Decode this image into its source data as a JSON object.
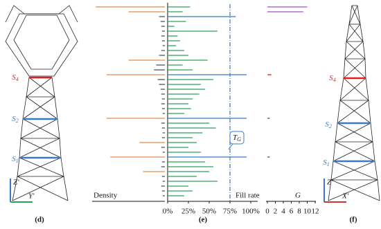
{
  "panels": {
    "captions": [
      "(d)",
      "(e)",
      "(f)"
    ]
  },
  "towers": [
    {
      "sections": [
        {
          "letter": "S",
          "sub": "4"
        },
        {
          "letter": "S",
          "sub": "2"
        },
        {
          "letter": "S",
          "sub": "1"
        }
      ],
      "axes": [
        "Z'",
        "Y'"
      ]
    },
    {
      "sections": [
        {
          "letter": "S",
          "sub": "4"
        },
        {
          "letter": "S",
          "sub": "2"
        },
        {
          "letter": "S",
          "sub": "1"
        }
      ],
      "axes": [
        "Z'",
        "X'"
      ]
    }
  ],
  "chart_data": [
    {
      "type": "hbar",
      "direction": "left",
      "xlabel": "Density",
      "categories": [
        null,
        null,
        null,
        null,
        null,
        null,
        null,
        null,
        null,
        null,
        null,
        null,
        null,
        null,
        null,
        null,
        null,
        null,
        null,
        null,
        null,
        null,
        null,
        null,
        null,
        null,
        null,
        null,
        null,
        null,
        null,
        null,
        null,
        null,
        null,
        null,
        null,
        null,
        null,
        null
      ],
      "values": [
        0.95,
        0.5,
        0.08,
        0.06,
        0.05,
        0.04,
        0.05,
        0.04,
        0.03,
        0.05,
        0.08,
        0.5,
        0.12,
        0.15,
        0.8,
        0.1,
        0.08,
        0.06,
        0.05,
        0.04,
        0.05,
        0.04,
        0.03,
        0.8,
        0.05,
        0.04,
        0.03,
        0.04,
        0.35,
        0.05,
        0.03,
        0.75,
        0.04,
        0.05,
        0.3,
        0.04,
        0.03,
        0.05,
        0.04,
        0.03
      ],
      "colors": [
        "#e8864a",
        "#e8864a",
        "#555",
        "#555",
        "#555",
        "#555",
        "#555",
        "#555",
        "#555",
        "#555",
        "#555",
        "#e8864a",
        "#555",
        "#555",
        "#e8864a",
        "#555",
        "#555",
        "#555",
        "#555",
        "#555",
        "#555",
        "#555",
        "#555",
        "#e8864a",
        "#555",
        "#555",
        "#555",
        "#555",
        "#e8864a",
        "#555",
        "#555",
        "#e8864a",
        "#555",
        "#555",
        "#e8864a",
        "#555",
        "#555",
        "#555",
        "#555",
        "#555"
      ],
      "xlim": [
        0,
        1
      ]
    },
    {
      "type": "hbar",
      "direction": "right",
      "xlabel": "Fill rate",
      "categories": [
        null,
        null,
        null,
        null,
        null,
        null,
        null,
        null,
        null,
        null,
        null,
        null,
        null,
        null,
        null,
        null,
        null,
        null,
        null,
        null,
        null,
        null,
        null,
        null,
        null,
        null,
        null,
        null,
        null,
        null,
        null,
        null,
        null,
        null,
        null,
        null,
        null,
        null,
        null,
        null
      ],
      "values": [
        27,
        18,
        82,
        22,
        8,
        60,
        12,
        15,
        10,
        20,
        25,
        48,
        18,
        30,
        95,
        55,
        40,
        45,
        38,
        30,
        25,
        28,
        20,
        95,
        50,
        58,
        42,
        30,
        35,
        25,
        40,
        95,
        45,
        55,
        50,
        35,
        60,
        25,
        30,
        20
      ],
      "colors": [
        "#2ca05a",
        "#2ca05a",
        "#3b78c8",
        "#2ca05a",
        "#2ca05a",
        "#2ca05a",
        "#2ca05a",
        "#2ca05a",
        "#2ca05a",
        "#2ca05a",
        "#2ca05a",
        "#2ca05a",
        "#2ca05a",
        "#2ca05a",
        "#3b78c8",
        "#2ca05a",
        "#2ca05a",
        "#2ca05a",
        "#2ca05a",
        "#2ca05a",
        "#2ca05a",
        "#2ca05a",
        "#2ca05a",
        "#3b78c8",
        "#2ca05a",
        "#2ca05a",
        "#2ca05a",
        "#2ca05a",
        "#2ca05a",
        "#2ca05a",
        "#2ca05a",
        "#3b78c8",
        "#2ca05a",
        "#2ca05a",
        "#2ca05a",
        "#2ca05a",
        "#2ca05a",
        "#2ca05a",
        "#2ca05a",
        "#2ca05a"
      ],
      "xlim": [
        0,
        100
      ],
      "xticks": [
        {
          "value": 0,
          "label": "0%"
        },
        {
          "value": 25,
          "label": "25%"
        },
        {
          "value": 50,
          "label": "50%"
        },
        {
          "value": 75,
          "label": "75%"
        },
        {
          "value": 100,
          "label": "100%"
        }
      ],
      "threshold": 75,
      "threshold_color": "#3b78c8",
      "annotation": {
        "text": "T",
        "sub": "G"
      }
    },
    {
      "type": "hbar",
      "direction": "right",
      "xlabel": "G",
      "categories": [
        null,
        null,
        null,
        null,
        null,
        null,
        null,
        null,
        null,
        null,
        null,
        null,
        null,
        null,
        null,
        null,
        null,
        null,
        null,
        null,
        null,
        null,
        null,
        null,
        null,
        null,
        null,
        null,
        null,
        null,
        null,
        null,
        null,
        null,
        null,
        null,
        null,
        null,
        null,
        null
      ],
      "values": [
        10,
        9,
        null,
        null,
        null,
        null,
        null,
        null,
        null,
        null,
        null,
        null,
        null,
        null,
        1,
        null,
        null,
        null,
        null,
        null,
        null,
        null,
        null,
        0.6,
        null,
        null,
        null,
        null,
        null,
        null,
        null,
        0.6,
        null,
        null,
        null,
        null,
        null,
        null,
        null,
        null
      ],
      "colors": [
        "#a050c8",
        "#a050c8",
        "#555",
        "#555",
        "#555",
        "#555",
        "#555",
        "#555",
        "#555",
        "#555",
        "#555",
        "#555",
        "#555",
        "#555",
        "#e02020",
        "#555",
        "#555",
        "#555",
        "#555",
        "#555",
        "#555",
        "#555",
        "#555",
        "#555",
        "#555",
        "#555",
        "#555",
        "#555",
        "#555",
        "#555",
        "#555",
        "#555",
        "#555",
        "#555",
        "#555",
        "#555",
        "#555",
        "#555",
        "#555",
        "#555"
      ],
      "xlim": [
        0,
        12
      ],
      "xticks": [
        0,
        2,
        4,
        6,
        8,
        10,
        12
      ]
    }
  ]
}
